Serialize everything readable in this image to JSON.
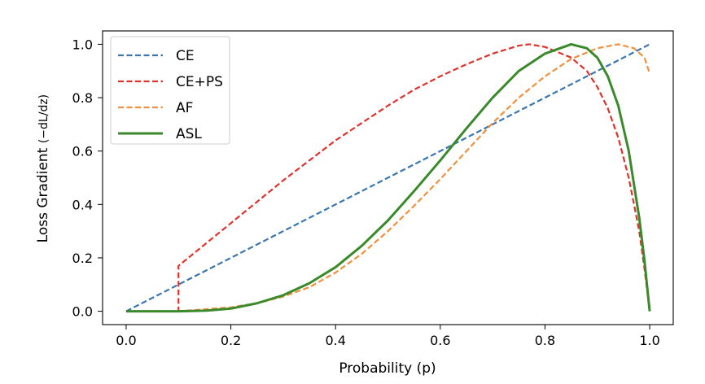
{
  "chart_data": {
    "type": "line",
    "title": "",
    "xlabel": "Probability (p)",
    "ylabel": "Loss Gradient",
    "ylabel_math": "(−dL/dz)",
    "xlim": [
      -0.045,
      1.045
    ],
    "ylim": [
      -0.05,
      1.05
    ],
    "xticks": [
      0.0,
      0.2,
      0.4,
      0.6,
      0.8,
      1.0
    ],
    "xtick_labels": [
      "0.0",
      "0.2",
      "0.4",
      "0.6",
      "0.8",
      "1.0"
    ],
    "yticks": [
      0.0,
      0.2,
      0.4,
      0.6,
      0.8,
      1.0
    ],
    "ytick_labels": [
      "0.0",
      "0.2",
      "0.4",
      "0.6",
      "0.8",
      "1.0"
    ],
    "grid": false,
    "legend_position": "top-left",
    "series": [
      {
        "name": "CE",
        "color": "#3a76af",
        "style": "dashed",
        "points": [
          [
            0.0,
            0.0
          ],
          [
            1.0,
            1.0
          ]
        ]
      },
      {
        "name": "CE+PS",
        "color": "#e1312a",
        "style": "dashed",
        "points": [
          [
            0.0,
            0.0
          ],
          [
            0.1,
            0.0
          ],
          [
            0.1,
            0.17
          ],
          [
            0.15,
            0.25
          ],
          [
            0.2,
            0.33
          ],
          [
            0.25,
            0.41
          ],
          [
            0.3,
            0.49
          ],
          [
            0.35,
            0.565
          ],
          [
            0.4,
            0.64
          ],
          [
            0.45,
            0.705
          ],
          [
            0.5,
            0.77
          ],
          [
            0.55,
            0.83
          ],
          [
            0.6,
            0.88
          ],
          [
            0.65,
            0.925
          ],
          [
            0.7,
            0.965
          ],
          [
            0.75,
            0.995
          ],
          [
            0.77,
            1.0
          ],
          [
            0.8,
            0.99
          ],
          [
            0.85,
            0.95
          ],
          [
            0.88,
            0.9
          ],
          [
            0.9,
            0.84
          ],
          [
            0.92,
            0.76
          ],
          [
            0.94,
            0.65
          ],
          [
            0.96,
            0.5
          ],
          [
            0.98,
            0.3
          ],
          [
            0.99,
            0.16
          ],
          [
            1.0,
            0.0
          ]
        ]
      },
      {
        "name": "AF",
        "color": "#f18f3b",
        "style": "dashed",
        "points": [
          [
            0.0,
            0.0
          ],
          [
            0.1,
            0.0
          ],
          [
            0.2,
            0.015
          ],
          [
            0.25,
            0.03
          ],
          [
            0.3,
            0.055
          ],
          [
            0.35,
            0.09
          ],
          [
            0.4,
            0.145
          ],
          [
            0.45,
            0.215
          ],
          [
            0.5,
            0.3
          ],
          [
            0.55,
            0.395
          ],
          [
            0.6,
            0.495
          ],
          [
            0.65,
            0.6
          ],
          [
            0.7,
            0.705
          ],
          [
            0.75,
            0.8
          ],
          [
            0.8,
            0.88
          ],
          [
            0.85,
            0.945
          ],
          [
            0.9,
            0.985
          ],
          [
            0.94,
            1.0
          ],
          [
            0.97,
            0.985
          ],
          [
            0.99,
            0.95
          ],
          [
            1.0,
            0.89
          ]
        ]
      },
      {
        "name": "ASL",
        "color": "#3a8a2b",
        "style": "solid",
        "points": [
          [
            0.0,
            0.0
          ],
          [
            0.1,
            0.0
          ],
          [
            0.15,
            0.002
          ],
          [
            0.2,
            0.01
          ],
          [
            0.25,
            0.03
          ],
          [
            0.3,
            0.06
          ],
          [
            0.35,
            0.105
          ],
          [
            0.4,
            0.165
          ],
          [
            0.45,
            0.245
          ],
          [
            0.5,
            0.34
          ],
          [
            0.55,
            0.45
          ],
          [
            0.6,
            0.565
          ],
          [
            0.65,
            0.685
          ],
          [
            0.7,
            0.8
          ],
          [
            0.75,
            0.9
          ],
          [
            0.8,
            0.965
          ],
          [
            0.85,
            1.0
          ],
          [
            0.88,
            0.985
          ],
          [
            0.9,
            0.95
          ],
          [
            0.92,
            0.88
          ],
          [
            0.94,
            0.77
          ],
          [
            0.96,
            0.6
          ],
          [
            0.98,
            0.35
          ],
          [
            0.99,
            0.19
          ],
          [
            1.0,
            0.0
          ]
        ]
      }
    ]
  }
}
